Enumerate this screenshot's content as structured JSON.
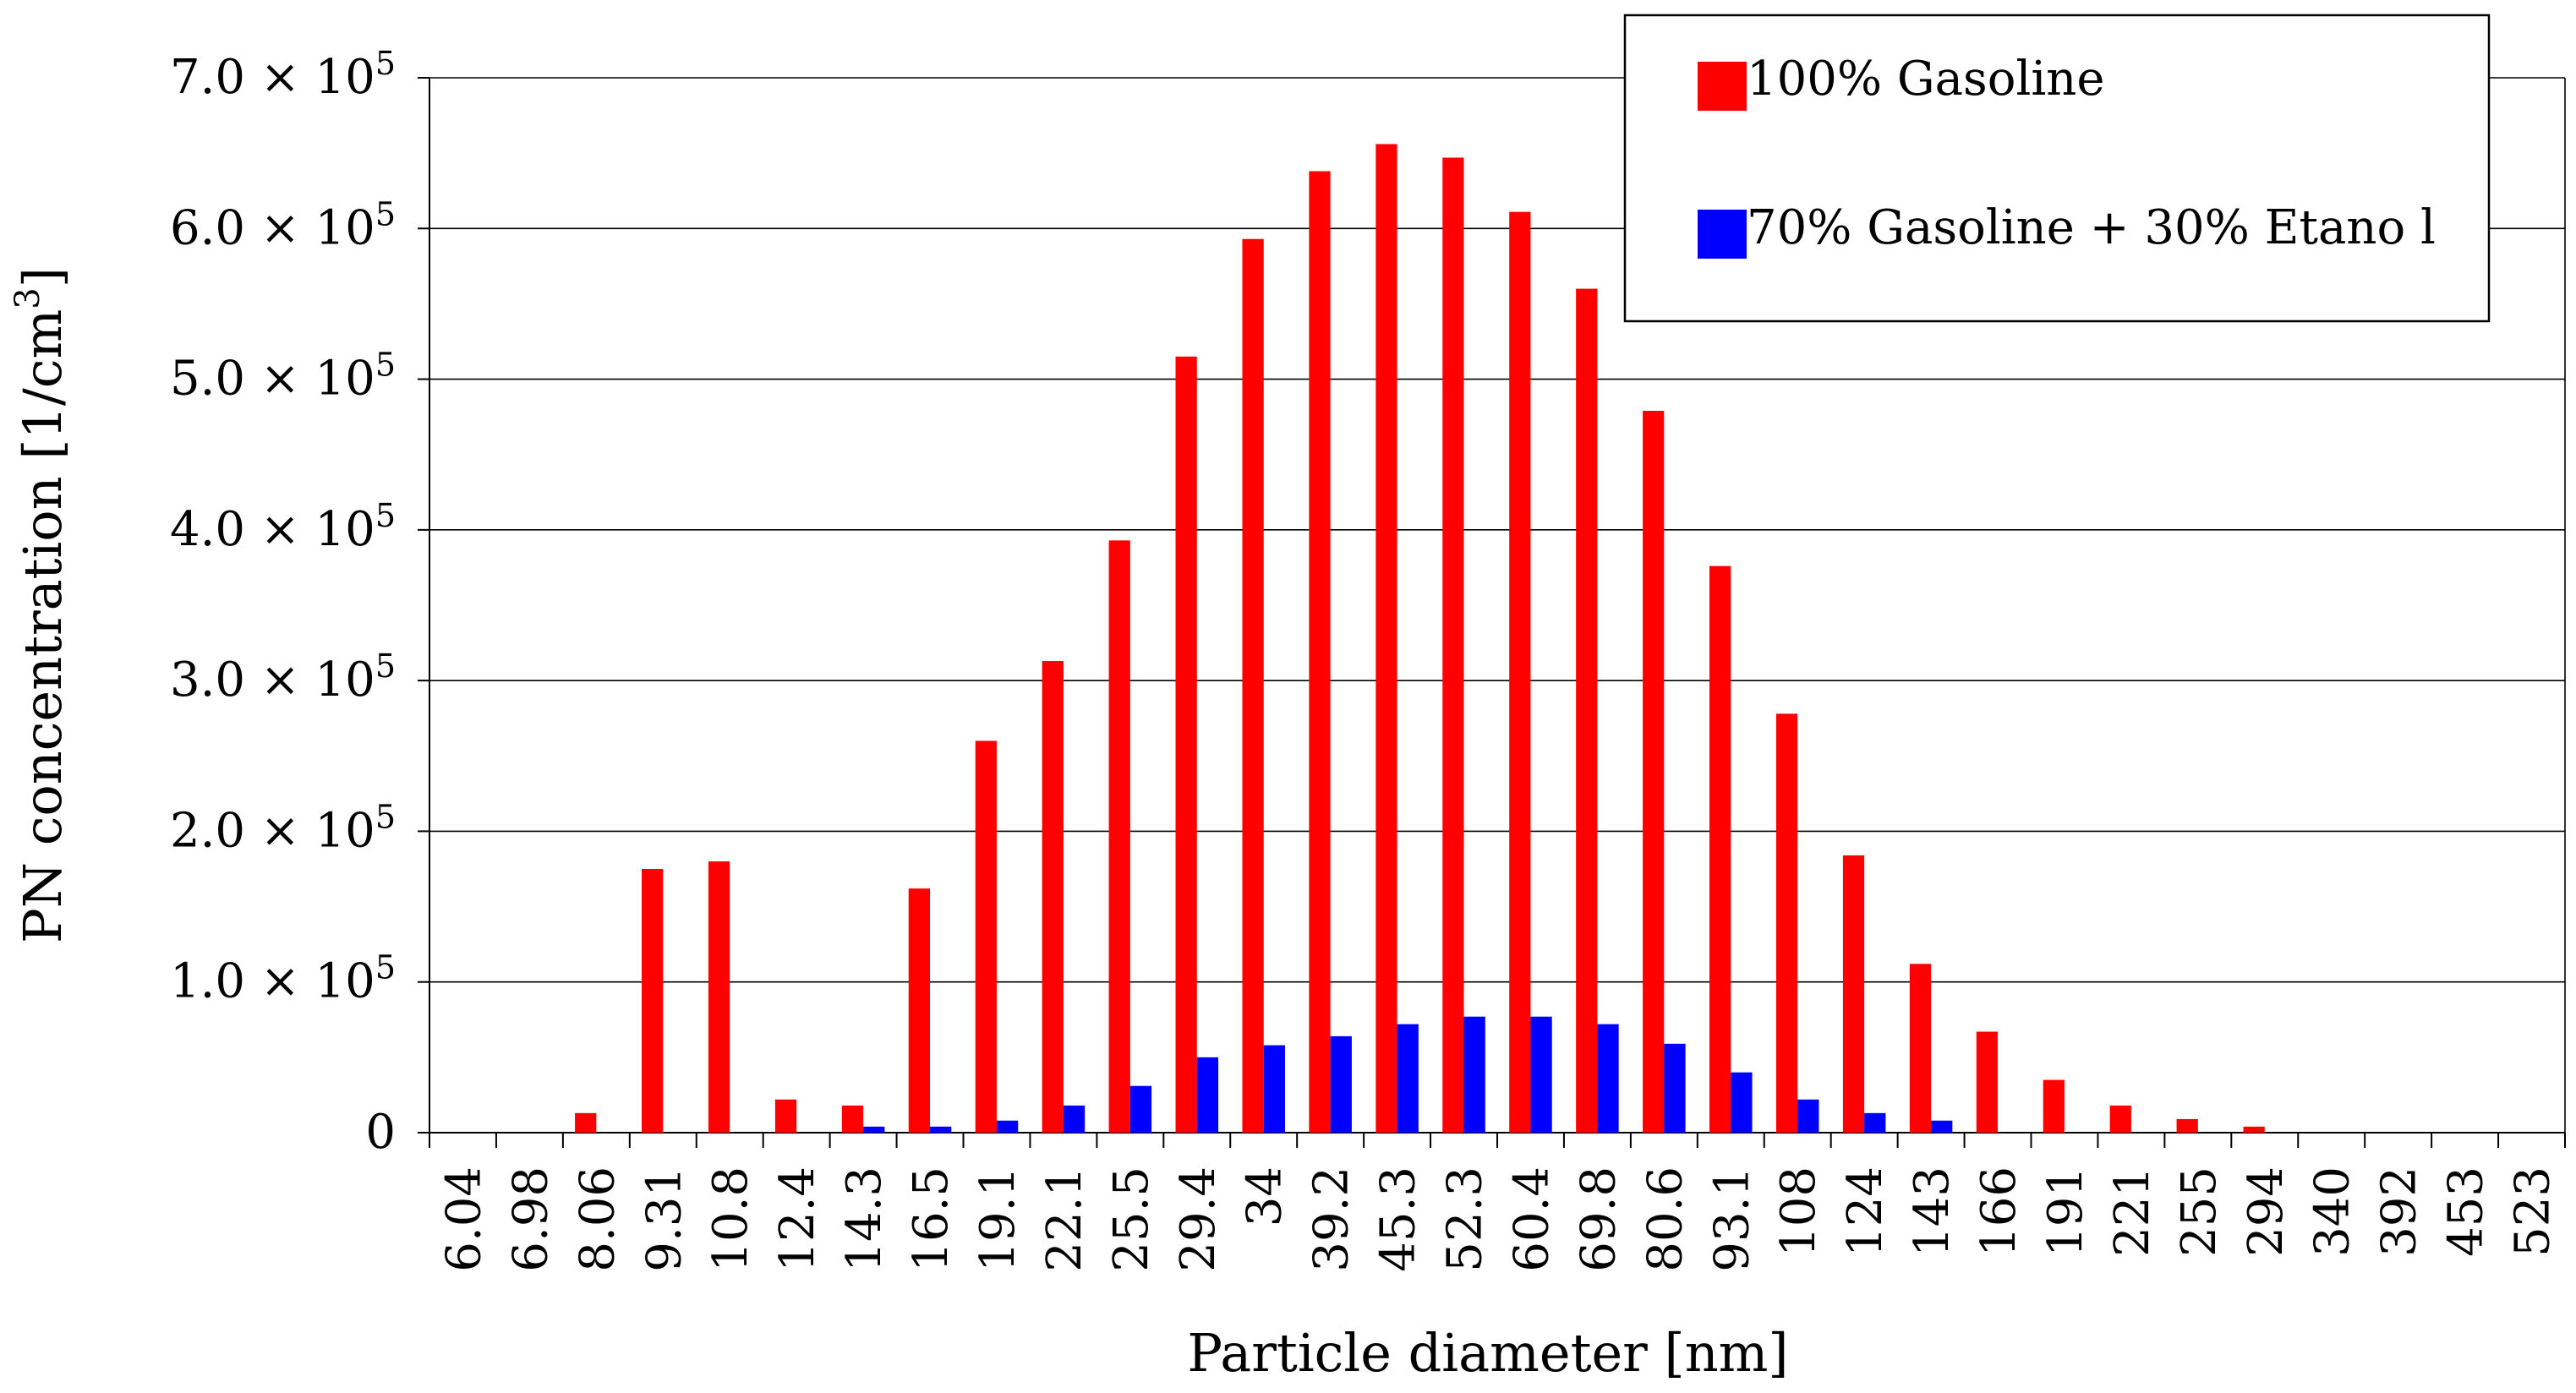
{
  "chart_data": {
    "type": "bar",
    "xlabel": "Particle diameter [nm]",
    "ylabel": "PN concentration [1/cm",
    "ylabel_superscript": "3",
    "ylabel_close": "]",
    "ylim": [
      0,
      700000
    ],
    "grid": true,
    "legend_position": "top-right",
    "y_ticks": [
      {
        "value": 0,
        "label": "0"
      },
      {
        "value": 100000,
        "label": "1.0 × 10",
        "exp": "5"
      },
      {
        "value": 200000,
        "label": "2.0 × 10",
        "exp": "5"
      },
      {
        "value": 300000,
        "label": "3.0 × 10",
        "exp": "5"
      },
      {
        "value": 400000,
        "label": "4.0 × 10",
        "exp": "5"
      },
      {
        "value": 500000,
        "label": "5.0 × 10",
        "exp": "5"
      },
      {
        "value": 600000,
        "label": "6.0 × 10",
        "exp": "5"
      },
      {
        "value": 700000,
        "label": "7.0 × 10",
        "exp": "5"
      }
    ],
    "categories": [
      "6.04",
      "6.98",
      "8.06",
      "9.31",
      "10.8",
      "12.4",
      "14.3",
      "16.5",
      "19.1",
      "22.1",
      "25.5",
      "29.4",
      "34",
      "39.2",
      "45.3",
      "52.3",
      "60.4",
      "69.8",
      "80.6",
      "93.1",
      "108",
      "124",
      "143",
      "166",
      "191",
      "221",
      "255",
      "294",
      "340",
      "392",
      "453",
      "523"
    ],
    "series": [
      {
        "name": "100% Gasoline",
        "color": "#ff0000",
        "values": [
          0,
          0,
          13000,
          175000,
          180000,
          22000,
          18000,
          162000,
          260000,
          313000,
          393000,
          515000,
          593000,
          638000,
          656000,
          647000,
          611000,
          560000,
          479000,
          376000,
          278000,
          184000,
          112000,
          67000,
          35000,
          18000,
          9000,
          4000,
          0,
          0,
          0,
          0
        ]
      },
      {
        "name": "70% Gasoline + 30% Etano l",
        "color": "#0000ff",
        "values": [
          0,
          0,
          0,
          0,
          0,
          0,
          4000,
          4000,
          8000,
          18000,
          31000,
          50000,
          58000,
          64000,
          72000,
          77000,
          77000,
          72000,
          59000,
          40000,
          22000,
          13000,
          8000,
          0,
          0,
          0,
          0,
          0,
          0,
          0,
          0,
          0
        ]
      }
    ]
  }
}
